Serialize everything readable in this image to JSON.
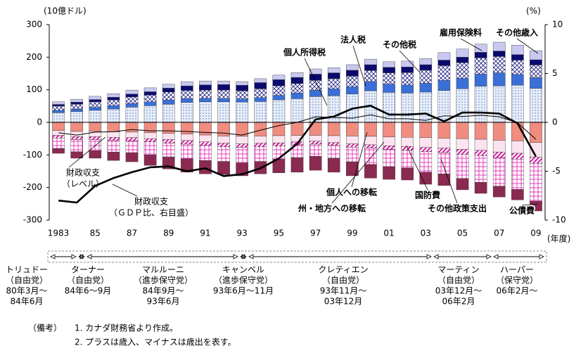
{
  "chart_data": {
    "type": "bar",
    "y_label": "(10億ドル)",
    "y2_label": "(%)",
    "x_label": "(年度)",
    "categories": [
      "1983",
      null,
      "85",
      null,
      "87",
      null,
      "89",
      null,
      "91",
      null,
      "93",
      null,
      "95",
      null,
      "97",
      null,
      "99",
      null,
      "01",
      null,
      "03",
      null,
      "05",
      null,
      "07",
      null,
      "09"
    ],
    "ylim": [
      -300,
      300
    ],
    "yticks": [
      -300,
      -200,
      -100,
      0,
      100,
      200,
      300
    ],
    "y2lim": [
      -10,
      10
    ],
    "y2ticks": [
      -10,
      -5,
      0,
      5,
      10
    ],
    "series": [
      {
        "name": "個人所得税",
        "color": "#1e3c9a",
        "pattern": "dots",
        "values": [
          30,
          33,
          37,
          41,
          47,
          51,
          56,
          61,
          63,
          63,
          62,
          64,
          69,
          73,
          79,
          82,
          87,
          97,
          92,
          90,
          93,
          98,
          103,
          111,
          112,
          114,
          104
        ]
      },
      {
        "name": "法人税",
        "color": "#3a6fd8",
        "values": [
          7,
          8,
          9,
          10,
          11,
          12,
          13,
          12,
          11,
          10,
          10,
          12,
          14,
          17,
          20,
          21,
          22,
          28,
          25,
          25,
          27,
          31,
          32,
          37,
          40,
          33,
          33
        ]
      },
      {
        "name": "その他税",
        "color": "#1a1a80",
        "pattern": "cross",
        "values": [
          13,
          15,
          17,
          18,
          20,
          21,
          24,
          25,
          25,
          26,
          25,
          27,
          29,
          29,
          30,
          31,
          33,
          34,
          35,
          38,
          40,
          45,
          48,
          50,
          50,
          44,
          39
        ]
      },
      {
        "name": "雇用保険料",
        "color": "#0a0a6e",
        "values": [
          5,
          6,
          7,
          8,
          9,
          10,
          12,
          14,
          16,
          17,
          17,
          19,
          19,
          19,
          19,
          18,
          18,
          18,
          17,
          17,
          17,
          17,
          17,
          17,
          17,
          17,
          16
        ]
      },
      {
        "name": "その他歳入",
        "color": "#c8c8f0",
        "values": [
          8,
          9,
          10,
          11,
          12,
          12,
          12,
          13,
          12,
          11,
          11,
          12,
          14,
          15,
          16,
          16,
          17,
          17,
          17,
          18,
          19,
          23,
          25,
          25,
          27,
          29,
          28
        ]
      },
      {
        "name": "個人への移転",
        "color": "#f08c80",
        "values": [
          -25,
          -28,
          -28,
          -29,
          -30,
          -32,
          -34,
          -36,
          -39,
          -42,
          -43,
          -42,
          -41,
          -40,
          -40,
          -41,
          -42,
          -43,
          -45,
          -46,
          -47,
          -49,
          -50,
          -52,
          -55,
          -57,
          -62
        ]
      },
      {
        "name": "州・地方への移転",
        "color": "#fbe3ef",
        "values": [
          -15,
          -16,
          -16,
          -17,
          -17,
          -18,
          -19,
          -20,
          -21,
          -22,
          -23,
          -22,
          -22,
          -20,
          -18,
          -21,
          -24,
          -26,
          -27,
          -28,
          -30,
          -30,
          -33,
          -34,
          -36,
          -38,
          -45
        ]
      },
      {
        "name": "国防費",
        "color": "#d81ba0",
        "pattern": "diagonal",
        "values": [
          -8,
          -9,
          -9,
          -9,
          -10,
          -10,
          -11,
          -11,
          -11,
          -11,
          -11,
          -11,
          -10,
          -9,
          -9,
          -9,
          -10,
          -10,
          -11,
          -12,
          -13,
          -14,
          -15,
          -16,
          -17,
          -18,
          -19
        ]
      },
      {
        "name": "その他政策支出",
        "color": "#e838b8",
        "pattern": "grid",
        "values": [
          -32,
          -37,
          -34,
          -36,
          -36,
          -40,
          -42,
          -45,
          -46,
          -45,
          -48,
          -45,
          -40,
          -39,
          -37,
          -39,
          -45,
          -50,
          -53,
          -54,
          -63,
          -65,
          -74,
          -82,
          -88,
          -93,
          -116
        ]
      },
      {
        "name": "公債費",
        "color": "#8b2a50",
        "values": [
          -15,
          -20,
          -23,
          -26,
          -28,
          -32,
          -37,
          -41,
          -41,
          -40,
          -39,
          -38,
          -42,
          -45,
          -43,
          -43,
          -43,
          -42,
          -39,
          -37,
          -37,
          -36,
          -35,
          -34,
          -33,
          -32,
          -30
        ]
      },
      {
        "type": "line",
        "name_lines": [
          "財政収支",
          "（レベル）"
        ],
        "color": "#000000",
        "width": 1,
        "values": [
          -32,
          -39,
          -30,
          -29,
          -22,
          -26,
          -26,
          -28,
          -31,
          -33,
          -39,
          -24,
          -10,
          0,
          17,
          15,
          13,
          23,
          11,
          11,
          6,
          20,
          18,
          22,
          17,
          -1,
          -52
        ]
      },
      {
        "type": "line",
        "name_lines": [
          "財政収支",
          "（ＧＤＰ比、右目盛）"
        ],
        "axis": "y2",
        "color": "#000000",
        "width": 2.6,
        "values": [
          -8.0,
          -8.2,
          -6.5,
          -5.7,
          -5.1,
          -4.6,
          -4.5,
          -5.0,
          -4.7,
          -5.5,
          -5.3,
          -4.7,
          -3.7,
          -2.2,
          0.3,
          0.6,
          1.4,
          1.7,
          0.8,
          0.8,
          0.9,
          0.1,
          1.0,
          1.0,
          0.9,
          -0.1,
          -3.5
        ]
      }
    ],
    "governments": [
      {
        "lines": [
          "トリュドー",
          "（自由党）",
          "80年3月～",
          "84年6月"
        ]
      },
      {
        "lines": [
          "ターナー",
          "（自由党）",
          "84年6～9月"
        ]
      },
      {
        "lines": [
          "マルルーニ",
          "（進歩保守党）",
          "84年9月～",
          "93年6月"
        ]
      },
      {
        "lines": [
          "キャンベル",
          "（進歩保守党）",
          "93年6月～11月"
        ]
      },
      {
        "lines": [
          "クレティエン",
          "（自由党）",
          "93年11月～",
          "03年12月"
        ]
      },
      {
        "lines": [
          "マーティン",
          "（自由党）",
          "03年12月～",
          "06年2月"
        ]
      },
      {
        "lines": [
          "ハーパー",
          "（保守党）",
          "06年2月～"
        ]
      }
    ],
    "notes": {
      "head": "（備考）",
      "items": [
        "1.  カナダ財務省より作成。",
        "2.  プラスは歳入、マイナスは歳出を表す。"
      ]
    }
  }
}
